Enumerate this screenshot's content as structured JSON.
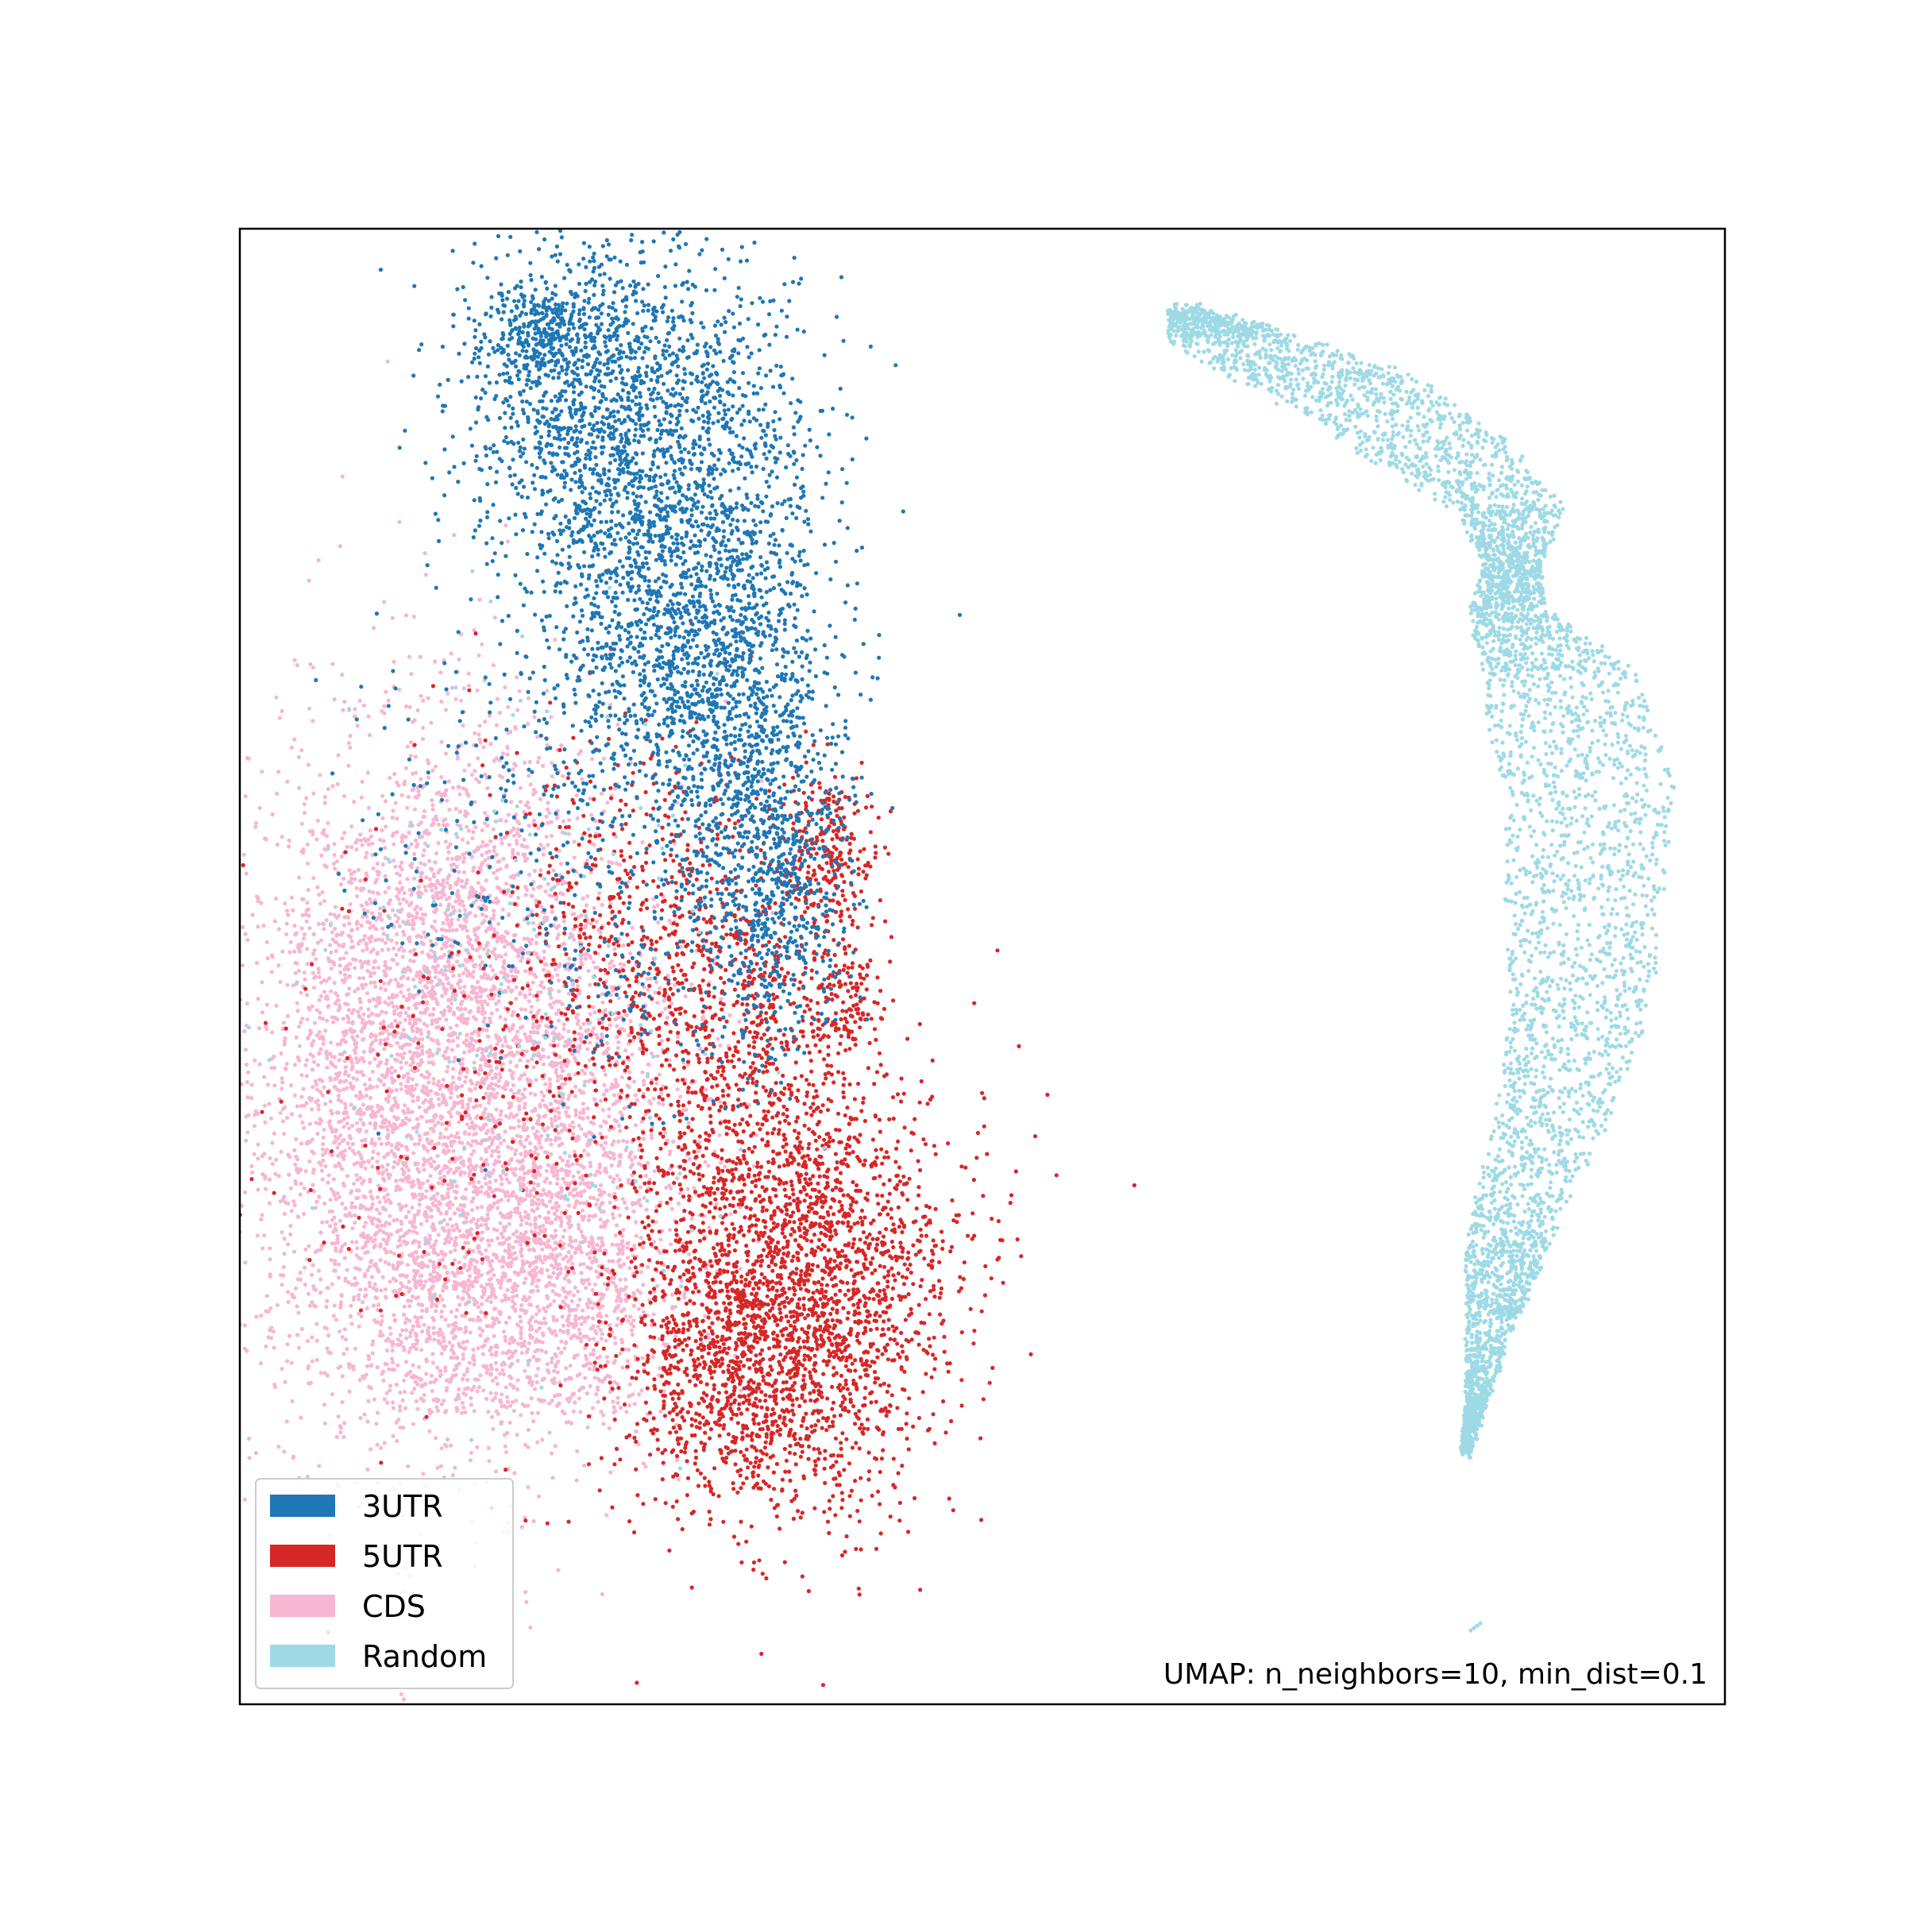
{
  "chart_data": {
    "type": "scatter",
    "title": "",
    "xlabel": "",
    "ylabel": "",
    "axes_ticks": false,
    "grid": false,
    "xlim": [
      0,
      10
    ],
    "ylim": [
      0,
      10
    ],
    "legend": {
      "placement": "lower-left",
      "entries": [
        {
          "label": "3UTR",
          "color": "#1f77b4"
        },
        {
          "label": "5UTR",
          "color": "#d62728"
        },
        {
          "label": "CDS",
          "color": "#f7b6d2"
        },
        {
          "label": "Random",
          "color": "#9edae5"
        }
      ]
    },
    "annotation": "UMAP: n_neighbors=10, min_dist=0.1",
    "series": [
      {
        "name": "3UTR",
        "color": "#1f77b4"
      },
      {
        "name": "5UTR",
        "color": "#d62728"
      },
      {
        "name": "CDS",
        "color": "#f7b6d2"
      },
      {
        "name": "Random",
        "color": "#9edae5"
      }
    ]
  }
}
